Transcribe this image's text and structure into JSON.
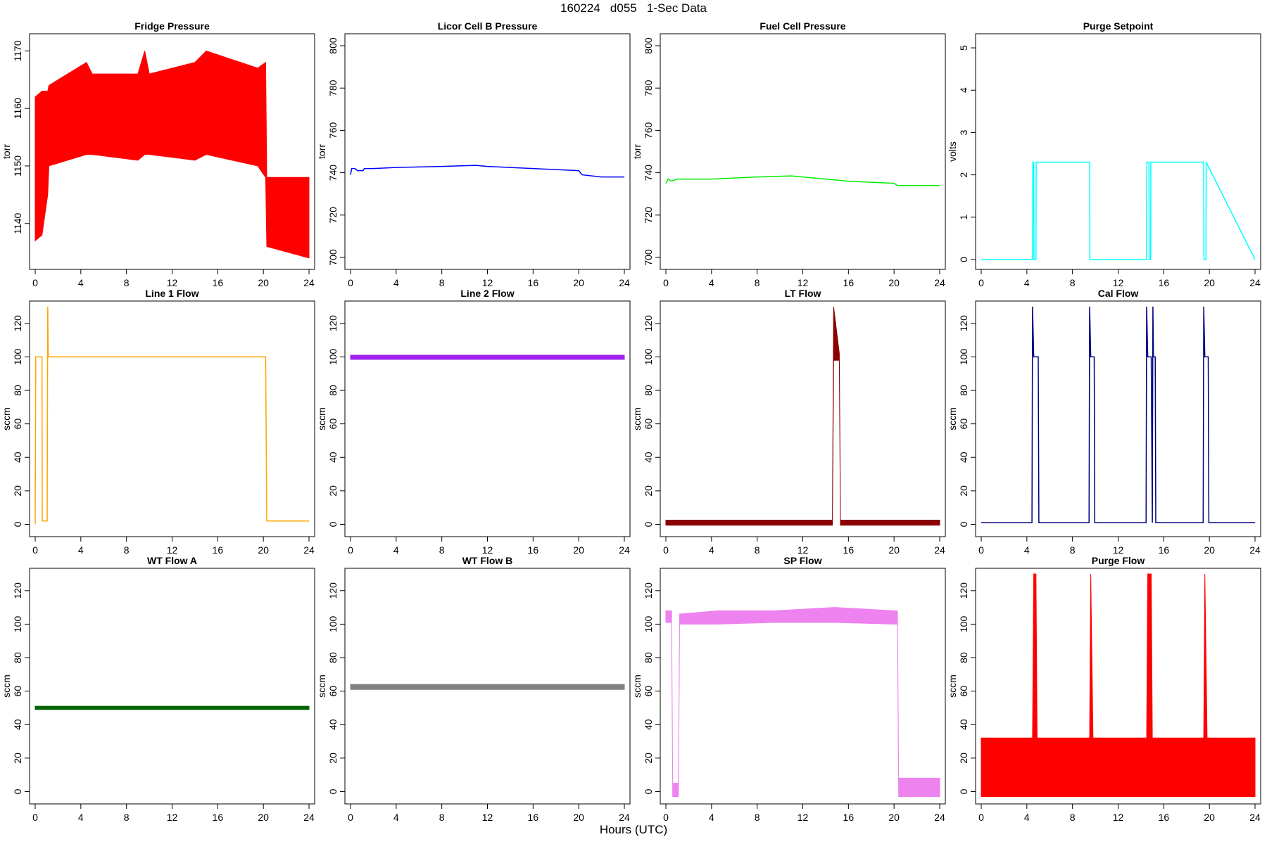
{
  "page": {
    "title": "160224   d055   1-Sec Data",
    "xlabel": "Hours (UTC)"
  },
  "chart_data": [
    {
      "type": "line",
      "title": "Fridge Pressure",
      "ylabel": "torr",
      "color": "#ff0000",
      "xlim": [
        0,
        24
      ],
      "ylim": [
        1133,
        1172
      ],
      "xticks": [
        0,
        4,
        8,
        12,
        16,
        20,
        24
      ],
      "yticks": [
        1140,
        1150,
        1160,
        1170
      ],
      "series": [
        {
          "kind": "band",
          "x": [
            0,
            0.6,
            1.1,
            1.2,
            4.5,
            5,
            9,
            9.6,
            10,
            14,
            15,
            19.5,
            20.2,
            20.3,
            24
          ],
          "low": [
            1137,
            1138,
            1145,
            1150,
            1152,
            1152,
            1151,
            1152,
            1152,
            1151,
            1152,
            1150,
            1148,
            1136,
            1134
          ],
          "high": [
            1162,
            1163,
            1163,
            1164,
            1168,
            1166,
            1166,
            1170,
            1166,
            1168,
            1170,
            1167,
            1168,
            1148,
            1148
          ]
        }
      ]
    },
    {
      "type": "line",
      "title": "Licor Cell B Pressure",
      "ylabel": "torr",
      "color": "#0000ff",
      "xlim": [
        0,
        24
      ],
      "ylim": [
        697,
        803
      ],
      "xticks": [
        0,
        4,
        8,
        12,
        16,
        20,
        24
      ],
      "yticks": [
        700,
        720,
        740,
        760,
        780,
        800
      ],
      "series": [
        {
          "kind": "line",
          "x": [
            0,
            0.1,
            0.4,
            0.6,
            1.1,
            1.2,
            2,
            4,
            8,
            11,
            12,
            16,
            20,
            20.3,
            22,
            24
          ],
          "y": [
            739,
            742,
            742,
            741,
            741,
            742,
            742,
            742.5,
            743,
            743.5,
            743,
            742,
            741,
            739,
            738,
            738
          ]
        }
      ]
    },
    {
      "type": "line",
      "title": "Fuel Cell Pressure",
      "ylabel": "torr",
      "color": "#00ee00",
      "xlim": [
        0,
        24
      ],
      "ylim": [
        697,
        803
      ],
      "xticks": [
        0,
        4,
        8,
        12,
        16,
        20,
        24
      ],
      "yticks": [
        700,
        720,
        740,
        760,
        780,
        800
      ],
      "series": [
        {
          "kind": "line",
          "x": [
            0,
            0.2,
            0.5,
            1,
            4,
            8,
            11,
            12,
            16,
            20,
            20.3,
            22,
            24
          ],
          "y": [
            735,
            737,
            736,
            737,
            737,
            738,
            738.5,
            738,
            736,
            735,
            734,
            734,
            734
          ]
        }
      ]
    },
    {
      "type": "line",
      "title": "Purge Setpoint",
      "ylabel": "volts",
      "color": "#00ffff",
      "xlim": [
        0,
        24
      ],
      "ylim": [
        -0.1,
        5.2
      ],
      "xticks": [
        0,
        4,
        8,
        12,
        16,
        20,
        24
      ],
      "yticks": [
        0,
        1,
        2,
        3,
        4,
        5
      ],
      "series": [
        {
          "kind": "line",
          "x": [
            0,
            4.5,
            4.52,
            4.6,
            4.62,
            4.8,
            4.82,
            9.5,
            9.52,
            9.7,
            9.72,
            14.5,
            14.52,
            14.7,
            14.72,
            14.85,
            14.87,
            19.5,
            19.52,
            19.7,
            19.72,
            24
          ],
          "y": [
            0,
            0,
            2.3,
            2.3,
            0,
            0,
            2.3,
            2.3,
            0,
            0,
            0,
            0,
            2.3,
            2.3,
            0,
            0,
            2.3,
            2.3,
            0,
            0,
            2.3,
            0
          ]
        }
      ]
    },
    {
      "type": "line",
      "title": "Line 1 Flow",
      "ylabel": "sccm",
      "color": "#ffa500",
      "xlim": [
        0,
        24
      ],
      "ylim": [
        -4,
        130
      ],
      "xticks": [
        0,
        4,
        8,
        12,
        16,
        20,
        24
      ],
      "yticks": [
        0,
        20,
        40,
        60,
        80,
        100,
        120
      ],
      "series": [
        {
          "kind": "line",
          "x": [
            0,
            0.05,
            0.6,
            0.62,
            1.05,
            1.1,
            1.15,
            1.2,
            20.2,
            20.3,
            24
          ],
          "y": [
            0,
            100,
            100,
            2,
            2,
            130,
            100,
            100,
            100,
            2,
            2
          ]
        }
      ]
    },
    {
      "type": "line",
      "title": "Line 2 Flow",
      "ylabel": "sccm",
      "color": "#a020f0",
      "xlim": [
        0,
        24
      ],
      "ylim": [
        -4,
        130
      ],
      "xticks": [
        0,
        4,
        8,
        12,
        16,
        20,
        24
      ],
      "yticks": [
        0,
        20,
        40,
        60,
        80,
        100,
        120
      ],
      "series": [
        {
          "kind": "band",
          "x": [
            0,
            24
          ],
          "low": [
            98.5,
            98.5
          ],
          "high": [
            101,
            101
          ]
        }
      ]
    },
    {
      "type": "line",
      "title": "LT Flow",
      "ylabel": "sccm",
      "color": "#8b0000",
      "xlim": [
        0,
        24
      ],
      "ylim": [
        -4,
        130
      ],
      "xticks": [
        0,
        4,
        8,
        12,
        16,
        20,
        24
      ],
      "yticks": [
        0,
        20,
        40,
        60,
        80,
        100,
        120
      ],
      "series": [
        {
          "kind": "band",
          "x": [
            0,
            14.6,
            14.7,
            15.2,
            15.3,
            24
          ],
          "low": [
            -0.5,
            -0.5,
            98,
            98,
            -0.5,
            -0.5
          ],
          "high": [
            2.5,
            2.5,
            130,
            102,
            2.5,
            2.5
          ]
        }
      ]
    },
    {
      "type": "line",
      "title": "Cal Flow",
      "ylabel": "sccm",
      "color": "#000080",
      "xlim": [
        0,
        24
      ],
      "ylim": [
        -4,
        130
      ],
      "xticks": [
        0,
        4,
        8,
        12,
        16,
        20,
        24
      ],
      "yticks": [
        0,
        20,
        40,
        60,
        80,
        100,
        120
      ],
      "series": [
        {
          "kind": "line",
          "x": [
            0,
            4.45,
            4.5,
            4.6,
            5,
            5.05,
            9.45,
            9.5,
            9.6,
            9.9,
            9.95,
            14.45,
            14.5,
            14.6,
            14.9,
            15,
            15.05,
            15.1,
            15.25,
            15.3,
            19.45,
            19.5,
            19.6,
            19.9,
            19.95,
            24
          ],
          "y": [
            1,
            1,
            130,
            100,
            100,
            1,
            1,
            130,
            100,
            100,
            1,
            1,
            130,
            100,
            100,
            1,
            130,
            100,
            100,
            1,
            1,
            130,
            100,
            100,
            1,
            1
          ]
        }
      ]
    },
    {
      "type": "line",
      "title": "WT Flow A",
      "ylabel": "sccm",
      "color": "#006400",
      "xlim": [
        0,
        24
      ],
      "ylim": [
        -4,
        130
      ],
      "xticks": [
        0,
        4,
        8,
        12,
        16,
        20,
        24
      ],
      "yticks": [
        0,
        20,
        40,
        60,
        80,
        100,
        120
      ],
      "series": [
        {
          "kind": "band",
          "x": [
            0,
            24
          ],
          "low": [
            49,
            49
          ],
          "high": [
            51,
            51
          ]
        }
      ]
    },
    {
      "type": "line",
      "title": "WT Flow B",
      "ylabel": "sccm",
      "color": "#808080",
      "xlim": [
        0,
        24
      ],
      "ylim": [
        -4,
        130
      ],
      "xticks": [
        0,
        4,
        8,
        12,
        16,
        20,
        24
      ],
      "yticks": [
        0,
        20,
        40,
        60,
        80,
        100,
        120
      ],
      "series": [
        {
          "kind": "band",
          "x": [
            0,
            24
          ],
          "low": [
            61,
            61
          ],
          "high": [
            64,
            64
          ]
        }
      ]
    },
    {
      "type": "line",
      "title": "SP Flow",
      "ylabel": "sccm",
      "color": "#ee82ee",
      "xlim": [
        0,
        24
      ],
      "ylim": [
        -4,
        130
      ],
      "xticks": [
        0,
        4,
        8,
        12,
        16,
        20,
        24
      ],
      "yticks": [
        0,
        20,
        40,
        60,
        80,
        100,
        120
      ],
      "series": [
        {
          "kind": "band",
          "x": [
            0,
            0.5,
            0.6,
            1.1,
            1.2,
            4.5,
            9.5,
            14.8,
            20,
            20.3,
            20.4,
            24
          ],
          "low": [
            101,
            101,
            -3,
            -3,
            100,
            100,
            101,
            101,
            100,
            100,
            -3,
            -3
          ],
          "high": [
            108,
            108,
            5,
            5,
            106,
            108,
            108,
            110,
            108,
            108,
            8,
            8
          ]
        }
      ]
    },
    {
      "type": "line",
      "title": "Purge Flow",
      "ylabel": "sccm",
      "color": "#ff0000",
      "xlim": [
        0,
        24
      ],
      "ylim": [
        -4,
        130
      ],
      "xticks": [
        0,
        4,
        8,
        12,
        16,
        20,
        24
      ],
      "yticks": [
        0,
        20,
        40,
        60,
        80,
        100,
        120
      ],
      "series": [
        {
          "kind": "band",
          "x": [
            0,
            4.5,
            4.6,
            4.8,
            4.9,
            9.5,
            9.6,
            9.8,
            14.5,
            14.6,
            14.8,
            14.9,
            15,
            19.5,
            19.6,
            19.8,
            24
          ],
          "low": [
            -3,
            -3,
            -3,
            -3,
            -3,
            -3,
            -3,
            -3,
            -3,
            -3,
            -3,
            -3,
            -3,
            -3,
            -3,
            -3,
            -3
          ],
          "high": [
            32,
            32,
            130,
            130,
            32,
            32,
            130,
            32,
            32,
            130,
            130,
            130,
            32,
            32,
            130,
            32,
            32
          ]
        }
      ]
    }
  ]
}
